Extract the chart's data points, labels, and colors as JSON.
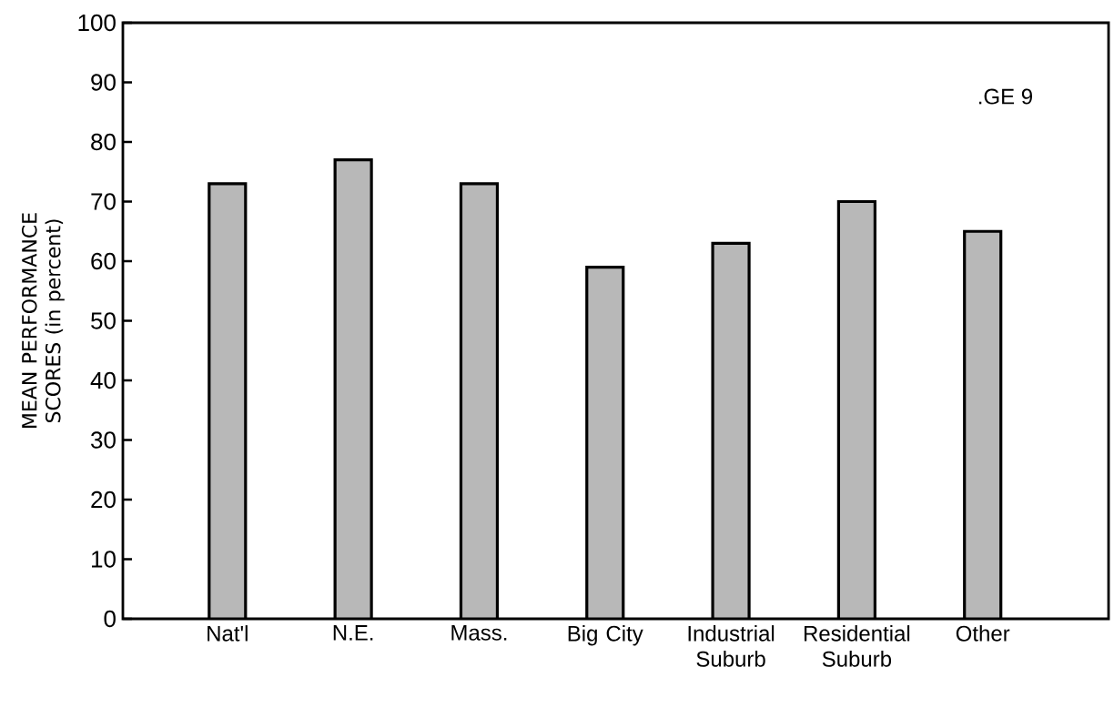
{
  "chart_data": {
    "type": "bar",
    "ylabel": "MEAN PERFORMANCE SCORES (in percent)",
    "categories": [
      "Nat'l",
      "N.E.",
      "Mass.",
      "Big City",
      "Industrial Suburb",
      "Residential Suburb",
      "Other"
    ],
    "values": [
      73,
      77,
      73,
      59,
      63,
      70,
      65
    ],
    "color": "#b8b8b8",
    "ylim": [
      0,
      100
    ],
    "yticks": [
      0,
      10,
      20,
      30,
      40,
      50,
      60,
      70,
      80,
      90,
      100
    ],
    "annotations": [
      ".GE 9"
    ]
  }
}
